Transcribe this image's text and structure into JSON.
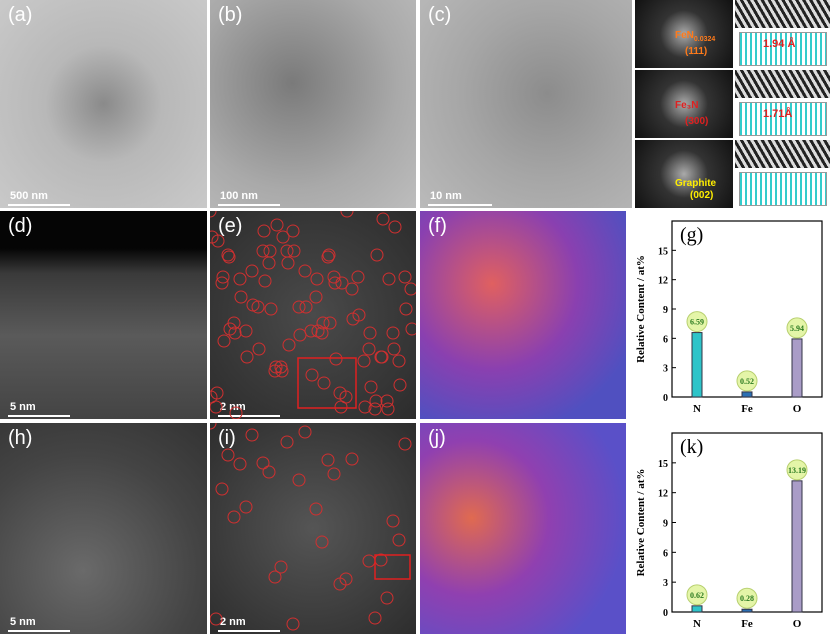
{
  "panels": [
    {
      "label": "(a)",
      "scale_bar": "500 nm"
    },
    {
      "label": "(b)",
      "scale_bar": "100 nm"
    },
    {
      "label": "(c)",
      "scale_bar": "10 nm"
    },
    {
      "label": "(d)",
      "scale_bar": "5 nm"
    },
    {
      "label": "(e)",
      "scale_bar": "2 nm"
    },
    {
      "label": "(f)"
    },
    {
      "label": "(h)",
      "scale_bar": "5 nm"
    },
    {
      "label": "(i)",
      "scale_bar": "2 nm"
    },
    {
      "label": "(j)"
    }
  ],
  "insets": [
    {
      "phase": "FeN",
      "subscript": "0.0324",
      "plane": "(111)",
      "spacing": "1.94 Å"
    },
    {
      "phase": "Fe₃N",
      "plane": "(300)",
      "spacing": "1.71Å"
    },
    {
      "phase": "Graphite",
      "plane": "(002)"
    }
  ],
  "chart_data": [
    {
      "type": "bar",
      "label": "(g)",
      "y_label": "Relative Content / at%",
      "categories": [
        "N",
        "Fe",
        "O"
      ],
      "values": [
        6.59,
        0.52,
        5.94
      ],
      "colors": [
        "#2ec4c9",
        "#2b6fb3",
        "#a99cc7"
      ],
      "ylim": [
        0,
        18
      ],
      "yticks": [
        0,
        3,
        6,
        9,
        12,
        15
      ]
    },
    {
      "type": "bar",
      "label": "(k)",
      "y_label": "Relative Content / at%",
      "categories": [
        "N",
        "Fe",
        "O"
      ],
      "values": [
        0.62,
        0.28,
        13.19
      ],
      "colors": [
        "#2ec4c9",
        "#2b6fb3",
        "#a99cc7"
      ],
      "ylim": [
        0,
        18
      ],
      "yticks": [
        0,
        3,
        6,
        9,
        12,
        15
      ]
    }
  ]
}
